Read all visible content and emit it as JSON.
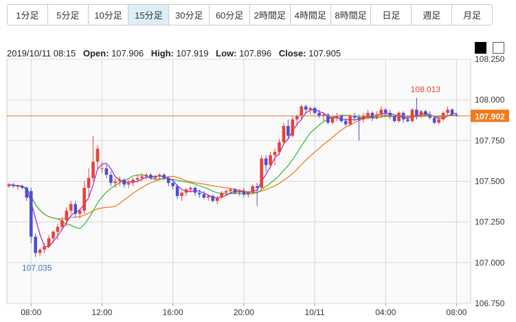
{
  "tabs": [
    {
      "label": "1分足",
      "active": false
    },
    {
      "label": "5分足",
      "active": false
    },
    {
      "label": "10分足",
      "active": false
    },
    {
      "label": "15分足",
      "active": true
    },
    {
      "label": "30分足",
      "active": false
    },
    {
      "label": "60分足",
      "active": false
    },
    {
      "label": "2時間足",
      "active": false
    },
    {
      "label": "4時間足",
      "active": false
    },
    {
      "label": "8時間足",
      "active": false
    },
    {
      "label": "日足",
      "active": false
    },
    {
      "label": "週足",
      "active": false
    },
    {
      "label": "月足",
      "active": false
    }
  ],
  "info": {
    "datetime": "2019/10/11 08:15",
    "open_label": "Open:",
    "open": "107.906",
    "high_label": "High:",
    "high": "107.919",
    "low_label": "Low:",
    "low": "107.896",
    "close_label": "Close:",
    "close": "107.905"
  },
  "colors": {
    "up": "#e8413b",
    "down": "#4b4fd6",
    "ma_fast": "#9b2fd0",
    "ma_mid": "#3cba3c",
    "ma_slow": "#f07a1e",
    "current_line": "#e07b2a",
    "current_badge": "#f07a1e",
    "grid": "#d8d8d8",
    "plot_bg": "#fafafa",
    "max_label": "#e8413b",
    "min_label": "#3b6fb6"
  },
  "chart_data": {
    "type": "candlestick",
    "ylim": [
      106.75,
      108.25
    ],
    "y_ticks": [
      "108.250",
      "108.000",
      "107.750",
      "107.500",
      "107.250",
      "107.000",
      "106.750"
    ],
    "x_ticks": [
      {
        "index": 5,
        "label": "08:00"
      },
      {
        "index": 21,
        "label": "12:00"
      },
      {
        "index": 37,
        "label": "16:00"
      },
      {
        "index": 53,
        "label": "20:00"
      },
      {
        "index": 69,
        "label": "10/11"
      },
      {
        "index": 85,
        "label": "04:00"
      },
      {
        "index": 101,
        "label": "08:00"
      }
    ],
    "current_price": "107.902",
    "current_value": 107.902,
    "max_label": "108.013",
    "max_index": 94,
    "max_value": 108.013,
    "min_label": "107.035",
    "min_index": 6,
    "min_value": 107.035,
    "candles": [
      [
        107.47,
        107.49,
        107.46,
        107.48
      ],
      [
        107.48,
        107.49,
        107.46,
        107.47
      ],
      [
        107.47,
        107.48,
        107.45,
        107.47
      ],
      [
        107.47,
        107.48,
        107.45,
        107.46
      ],
      [
        107.46,
        107.47,
        107.38,
        107.4
      ],
      [
        107.44,
        107.46,
        107.12,
        107.16
      ],
      [
        107.16,
        107.18,
        107.035,
        107.06
      ],
      [
        107.06,
        107.09,
        107.04,
        107.08
      ],
      [
        107.08,
        107.12,
        107.06,
        107.1
      ],
      [
        107.1,
        107.17,
        107.09,
        107.15
      ],
      [
        107.15,
        107.2,
        107.12,
        107.19
      ],
      [
        107.19,
        107.24,
        107.14,
        107.22
      ],
      [
        107.22,
        107.28,
        107.2,
        107.26
      ],
      [
        107.26,
        107.34,
        107.22,
        107.32
      ],
      [
        107.32,
        107.38,
        107.3,
        107.36
      ],
      [
        107.36,
        107.38,
        107.28,
        107.3
      ],
      [
        107.3,
        107.33,
        107.27,
        107.32
      ],
      [
        107.32,
        107.5,
        107.3,
        107.46
      ],
      [
        107.46,
        107.58,
        107.4,
        107.52
      ],
      [
        107.52,
        107.78,
        107.5,
        107.62
      ],
      [
        107.62,
        107.72,
        107.58,
        107.7
      ],
      [
        107.58,
        107.62,
        107.55,
        107.58
      ],
      [
        107.58,
        107.6,
        107.52,
        107.54
      ],
      [
        107.54,
        107.56,
        107.47,
        107.49
      ],
      [
        107.49,
        107.52,
        107.46,
        107.5
      ],
      [
        107.5,
        107.53,
        107.47,
        107.51
      ],
      [
        107.51,
        107.52,
        107.46,
        107.48
      ],
      [
        107.48,
        107.51,
        107.46,
        107.49
      ],
      [
        107.49,
        107.52,
        107.47,
        107.51
      ],
      [
        107.51,
        107.54,
        107.49,
        107.52
      ],
      [
        107.52,
        107.55,
        107.5,
        107.53
      ],
      [
        107.53,
        107.55,
        107.51,
        107.54
      ],
      [
        107.54,
        107.55,
        107.51,
        107.52
      ],
      [
        107.52,
        107.54,
        107.5,
        107.53
      ],
      [
        107.53,
        107.55,
        107.51,
        107.54
      ],
      [
        107.54,
        107.55,
        107.51,
        107.52
      ],
      [
        107.52,
        107.53,
        107.47,
        107.49
      ],
      [
        107.49,
        107.51,
        107.45,
        107.47
      ],
      [
        107.47,
        107.48,
        107.39,
        107.41
      ],
      [
        107.41,
        107.44,
        107.38,
        107.43
      ],
      [
        107.43,
        107.46,
        107.41,
        107.45
      ],
      [
        107.45,
        107.47,
        107.43,
        107.46
      ],
      [
        107.46,
        107.47,
        107.41,
        107.43
      ],
      [
        107.43,
        107.45,
        107.4,
        107.42
      ],
      [
        107.42,
        107.44,
        107.39,
        107.4
      ],
      [
        107.4,
        107.42,
        107.38,
        107.41
      ],
      [
        107.41,
        107.42,
        107.37,
        107.38
      ],
      [
        107.38,
        107.41,
        107.36,
        107.4
      ],
      [
        107.4,
        107.44,
        107.39,
        107.43
      ],
      [
        107.43,
        107.45,
        107.41,
        107.44
      ],
      [
        107.44,
        107.46,
        107.42,
        107.45
      ],
      [
        107.45,
        107.46,
        107.42,
        107.43
      ],
      [
        107.43,
        107.45,
        107.41,
        107.44
      ],
      [
        107.44,
        107.46,
        107.4,
        107.42
      ],
      [
        107.42,
        107.44,
        107.4,
        107.43
      ],
      [
        107.43,
        107.48,
        107.42,
        107.47
      ],
      [
        107.47,
        107.49,
        107.35,
        107.46
      ],
      [
        107.46,
        107.66,
        107.45,
        107.64
      ],
      [
        107.64,
        107.66,
        107.56,
        107.6
      ],
      [
        107.6,
        107.68,
        107.58,
        107.66
      ],
      [
        107.66,
        107.7,
        107.6,
        107.68
      ],
      [
        107.68,
        107.76,
        107.66,
        107.74
      ],
      [
        107.74,
        107.86,
        107.72,
        107.84
      ],
      [
        107.84,
        107.88,
        107.76,
        107.78
      ],
      [
        107.78,
        107.9,
        107.77,
        107.88
      ],
      [
        107.88,
        107.91,
        107.84,
        107.9
      ],
      [
        107.9,
        107.97,
        107.88,
        107.96
      ],
      [
        107.96,
        107.97,
        107.92,
        107.94
      ],
      [
        107.94,
        107.96,
        107.91,
        107.95
      ],
      [
        107.95,
        107.96,
        107.91,
        107.92
      ],
      [
        107.92,
        107.94,
        107.89,
        107.9
      ],
      [
        107.9,
        107.92,
        107.87,
        107.91
      ],
      [
        107.91,
        107.92,
        107.85,
        107.86
      ],
      [
        107.86,
        107.9,
        107.85,
        107.89
      ],
      [
        107.89,
        107.92,
        107.87,
        107.9
      ],
      [
        107.9,
        107.91,
        107.86,
        107.87
      ],
      [
        107.87,
        107.89,
        107.84,
        107.85
      ],
      [
        107.85,
        107.91,
        107.84,
        107.9
      ],
      [
        107.9,
        107.92,
        107.87,
        107.89
      ],
      [
        107.89,
        107.91,
        107.75,
        107.88
      ],
      [
        107.88,
        107.92,
        107.86,
        107.9
      ],
      [
        107.9,
        107.94,
        107.88,
        107.92
      ],
      [
        107.92,
        107.93,
        107.87,
        107.89
      ],
      [
        107.89,
        107.93,
        107.88,
        107.91
      ],
      [
        107.91,
        107.96,
        107.89,
        107.94
      ],
      [
        107.94,
        107.95,
        107.9,
        107.92
      ],
      [
        107.92,
        107.94,
        107.88,
        107.9
      ],
      [
        107.9,
        107.91,
        107.86,
        107.87
      ],
      [
        107.87,
        107.93,
        107.86,
        107.92
      ],
      [
        107.92,
        107.93,
        107.86,
        107.88
      ],
      [
        107.88,
        107.9,
        107.86,
        107.87
      ],
      [
        107.87,
        107.95,
        107.86,
        107.94
      ],
      [
        107.94,
        108.013,
        107.88,
        107.9
      ],
      [
        107.9,
        107.94,
        107.89,
        107.93
      ],
      [
        107.93,
        107.94,
        107.9,
        107.91
      ],
      [
        107.91,
        107.93,
        107.88,
        107.89
      ],
      [
        107.89,
        107.9,
        107.85,
        107.86
      ],
      [
        107.86,
        107.9,
        107.85,
        107.88
      ],
      [
        107.88,
        107.93,
        107.87,
        107.92
      ],
      [
        107.92,
        107.96,
        107.9,
        107.94
      ],
      [
        107.94,
        107.95,
        107.9,
        107.91
      ],
      [
        107.91,
        107.919,
        107.896,
        107.905
      ]
    ]
  }
}
